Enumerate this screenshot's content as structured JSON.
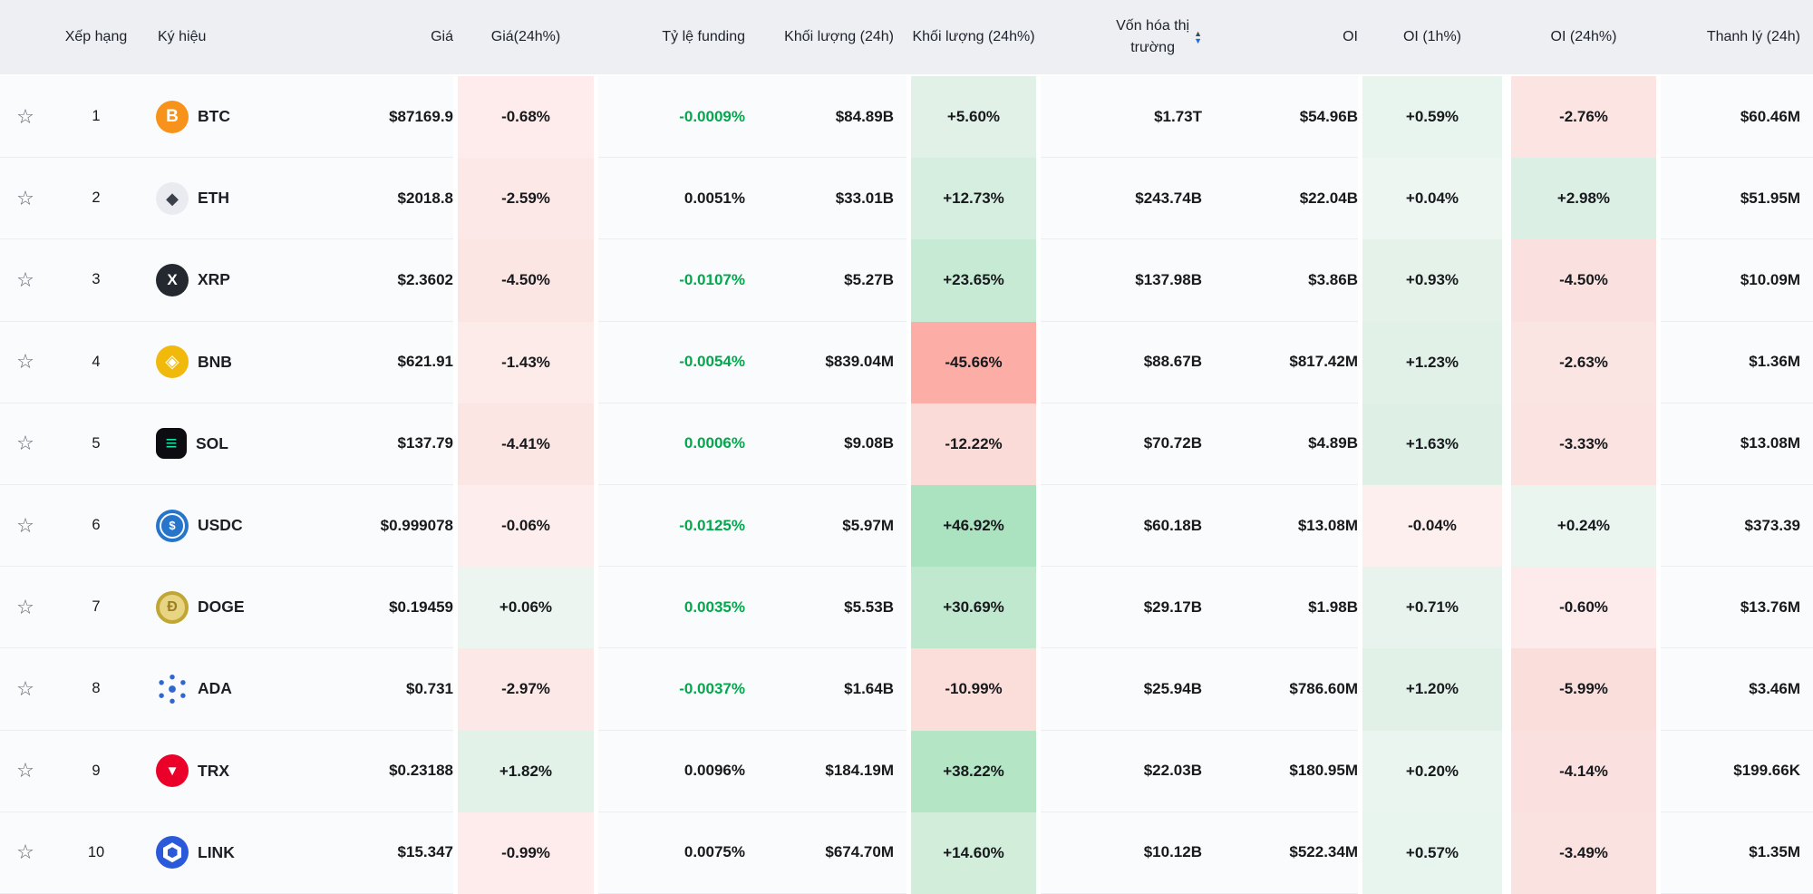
{
  "colors": {
    "header_bg": "#edeff3",
    "cell_bg": "#fafbfc",
    "text": "#17191d",
    "funding_green": "#04a74e",
    "sort_up_inactive": "#3e4a56",
    "sort_down_active": "#1a6bdc",
    "star": "#5c626d"
  },
  "header": {
    "rank": "Xếp hạng",
    "symbol": "Ký hiệu",
    "price": "Giá",
    "price_chg": "Giá(24h%)",
    "funding": "Tỷ lệ funding",
    "volume": "Khối lượng (24h)",
    "volume_chg": "Khối lượng (24h%)",
    "mcap_line1": "Vốn hóa thị",
    "mcap_line2": "trường",
    "oi": "OI",
    "oi_1h": "OI (1h%)",
    "oi_24h": "OI (24h%)",
    "liquidation": "Thanh lý (24h)"
  },
  "sort": {
    "column": "market_cap",
    "direction": "desc"
  },
  "rows": [
    {
      "rank": "1",
      "symbol": "BTC",
      "icon": {
        "name": "btc-icon",
        "type": "glyph",
        "shape": "circle",
        "bg": "#f7931a",
        "fg": "#ffffff",
        "glyph": "B",
        "cls": ""
      },
      "price": "$87169.9",
      "price_chg": {
        "text": "-0.68%",
        "bg": "#fdeceb"
      },
      "funding": {
        "text": "-0.0009%",
        "green": true
      },
      "volume": "$84.89B",
      "volume_chg": {
        "text": "+5.60%",
        "bg": "#e2f1e8"
      },
      "market_cap": "$1.73T",
      "oi": "$54.96B",
      "oi_1h": {
        "text": "+0.59%",
        "bg": "#e8f4ee"
      },
      "oi_24h": {
        "text": "-2.76%",
        "bg": "#fbe4e2"
      },
      "liquidation": "$60.46M"
    },
    {
      "rank": "2",
      "symbol": "ETH",
      "icon": {
        "name": "eth-icon",
        "type": "glyph",
        "shape": "circle",
        "bg": "#e9ebf1",
        "fg": "#3c4149",
        "glyph": "◆",
        "cls": "g-eth"
      },
      "price": "$2018.8",
      "price_chg": {
        "text": "-2.59%",
        "bg": "#fce8e7"
      },
      "funding": {
        "text": "0.0051%",
        "green": false
      },
      "volume": "$33.01B",
      "volume_chg": {
        "text": "+12.73%",
        "bg": "#d6eee0"
      },
      "market_cap": "$243.74B",
      "oi": "$22.04B",
      "oi_1h": {
        "text": "+0.04%",
        "bg": "#eef6f1"
      },
      "oi_24h": {
        "text": "+2.98%",
        "bg": "#dcefe5"
      },
      "liquidation": "$51.95M"
    },
    {
      "rank": "3",
      "symbol": "XRP",
      "icon": {
        "name": "xrp-icon",
        "type": "glyph",
        "shape": "circle",
        "bg": "#23292f",
        "fg": "#ffffff",
        "glyph": "X",
        "cls": "g-xrp"
      },
      "price": "$2.3602",
      "price_chg": {
        "text": "-4.50%",
        "bg": "#fbe6e4"
      },
      "funding": {
        "text": "-0.0107%",
        "green": true
      },
      "volume": "$5.27B",
      "volume_chg": {
        "text": "+23.65%",
        "bg": "#c6ead4"
      },
      "market_cap": "$137.98B",
      "oi": "$3.86B",
      "oi_1h": {
        "text": "+0.93%",
        "bg": "#e5f2ea"
      },
      "oi_24h": {
        "text": "-4.50%",
        "bg": "#fae1df"
      },
      "liquidation": "$10.09M"
    },
    {
      "rank": "4",
      "symbol": "BNB",
      "icon": {
        "name": "bnb-icon",
        "type": "glyph",
        "shape": "circle",
        "bg": "#f0b90b",
        "fg": "#ffffff",
        "glyph": "◈",
        "cls": "g-bnb"
      },
      "price": "$621.91",
      "price_chg": {
        "text": "-1.43%",
        "bg": "#fcebe9"
      },
      "funding": {
        "text": "-0.0054%",
        "green": true
      },
      "volume": "$839.04M",
      "volume_chg": {
        "text": "-45.66%",
        "bg": "#fbada6"
      },
      "market_cap": "$88.67B",
      "oi": "$817.42M",
      "oi_1h": {
        "text": "+1.23%",
        "bg": "#e2f1e8"
      },
      "oi_24h": {
        "text": "-2.63%",
        "bg": "#fbe5e3"
      },
      "liquidation": "$1.36M"
    },
    {
      "rank": "5",
      "symbol": "SOL",
      "icon": {
        "name": "sol-icon",
        "type": "glyph",
        "shape": "squircle",
        "bg": "#0c0c11",
        "fg": "#16e2a4",
        "glyph": "≡",
        "cls": "g-sol"
      },
      "price": "$137.79",
      "price_chg": {
        "text": "-4.41%",
        "bg": "#fbe6e4"
      },
      "funding": {
        "text": "0.0006%",
        "green": true
      },
      "volume": "$9.08B",
      "volume_chg": {
        "text": "-12.22%",
        "bg": "#fbdbd7"
      },
      "market_cap": "$70.72B",
      "oi": "$4.89B",
      "oi_1h": {
        "text": "+1.63%",
        "bg": "#def0e6"
      },
      "oi_24h": {
        "text": "-3.33%",
        "bg": "#fae3e1"
      },
      "liquidation": "$13.08M"
    },
    {
      "rank": "6",
      "symbol": "USDC",
      "icon": {
        "name": "usdc-icon",
        "type": "usdc",
        "shape": "circle",
        "bg": "#2775ca",
        "fg": "#ffffff",
        "glyph": "$"
      },
      "price": "$0.999078",
      "price_chg": {
        "text": "-0.06%",
        "bg": "#fdeeed"
      },
      "funding": {
        "text": "-0.0125%",
        "green": true
      },
      "volume": "$5.97M",
      "volume_chg": {
        "text": "+46.92%",
        "bg": "#abe3c0"
      },
      "market_cap": "$60.18B",
      "oi": "$13.08M",
      "oi_1h": {
        "text": "-0.04%",
        "bg": "#fdefee"
      },
      "oi_24h": {
        "text": "+0.24%",
        "bg": "#ebf5ef"
      },
      "liquidation": "$373.39"
    },
    {
      "rank": "7",
      "symbol": "DOGE",
      "icon": {
        "name": "doge-icon",
        "type": "doge",
        "shape": "circle",
        "bg": "#e7d584",
        "ring": "#c2a633",
        "fg": "#9b7d23",
        "glyph": "Ð"
      },
      "price": "$0.19459",
      "price_chg": {
        "text": "+0.06%",
        "bg": "#ecf5f0"
      },
      "funding": {
        "text": "0.0035%",
        "green": true
      },
      "volume": "$5.53B",
      "volume_chg": {
        "text": "+30.69%",
        "bg": "#bfe8cf"
      },
      "market_cap": "$29.17B",
      "oi": "$1.98B",
      "oi_1h": {
        "text": "+0.71%",
        "bg": "#e7f3ec"
      },
      "oi_24h": {
        "text": "-0.60%",
        "bg": "#fcebea"
      },
      "liquidation": "$13.76M"
    },
    {
      "rank": "8",
      "symbol": "ADA",
      "icon": {
        "name": "ada-icon",
        "type": "ada",
        "shape": "circle",
        "color": "#2f66d0"
      },
      "price": "$0.731",
      "price_chg": {
        "text": "-2.97%",
        "bg": "#fce8e7"
      },
      "funding": {
        "text": "-0.0037%",
        "green": true
      },
      "volume": "$1.64B",
      "volume_chg": {
        "text": "-10.99%",
        "bg": "#fbddd9"
      },
      "market_cap": "$25.94B",
      "oi": "$786.60M",
      "oi_1h": {
        "text": "+1.20%",
        "bg": "#e2f1e8"
      },
      "oi_24h": {
        "text": "-5.99%",
        "bg": "#f9dedb"
      },
      "liquidation": "$3.46M"
    },
    {
      "rank": "9",
      "symbol": "TRX",
      "icon": {
        "name": "trx-icon",
        "type": "glyph",
        "shape": "circle",
        "bg": "#eb0029",
        "fg": "#ffffff",
        "glyph": "▼",
        "cls": "g-trx"
      },
      "price": "$0.23188",
      "price_chg": {
        "text": "+1.82%",
        "bg": "#e3f2e9"
      },
      "funding": {
        "text": "0.0096%",
        "green": false
      },
      "volume": "$184.19M",
      "volume_chg": {
        "text": "+38.22%",
        "bg": "#b4e5c5"
      },
      "market_cap": "$22.03B",
      "oi": "$180.95M",
      "oi_1h": {
        "text": "+0.20%",
        "bg": "#ebf5ef"
      },
      "oi_24h": {
        "text": "-4.14%",
        "bg": "#fae1df"
      },
      "liquidation": "$199.66K"
    },
    {
      "rank": "10",
      "symbol": "LINK",
      "icon": {
        "name": "link-icon",
        "type": "link",
        "shape": "circle",
        "bg": "#2a5ada",
        "fg": "#ffffff"
      },
      "price": "$15.347",
      "price_chg": {
        "text": "-0.99%",
        "bg": "#fdeceb"
      },
      "funding": {
        "text": "0.0075%",
        "green": false
      },
      "volume": "$674.70M",
      "volume_chg": {
        "text": "+14.60%",
        "bg": "#d2edda"
      },
      "market_cap": "$10.12B",
      "oi": "$522.34M",
      "oi_1h": {
        "text": "+0.57%",
        "bg": "#e8f4ee"
      },
      "oi_24h": {
        "text": "-3.49%",
        "bg": "#fae2e0"
      },
      "liquidation": "$1.35M"
    }
  ]
}
